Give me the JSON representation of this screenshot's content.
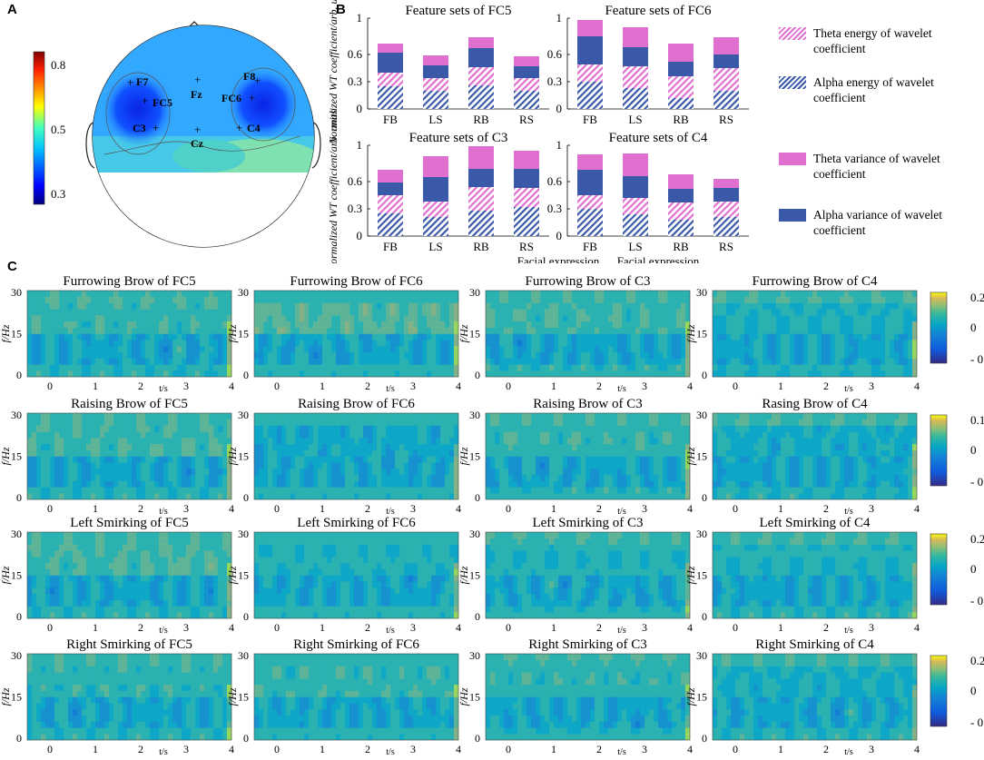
{
  "panels": {
    "a": "A",
    "b": "B",
    "c": "C"
  },
  "colors": {
    "theta": "#e070d0",
    "alpha": "#3a59a8"
  },
  "topomap": {
    "colorbar_ticks": [
      "0.8",
      "0.5",
      "0.3"
    ],
    "electrodes": [
      {
        "name": "F7"
      },
      {
        "name": "Fz"
      },
      {
        "name": "F8"
      },
      {
        "name": "FC5"
      },
      {
        "name": "FC6"
      },
      {
        "name": "C3"
      },
      {
        "name": "C4"
      },
      {
        "name": "Cz"
      }
    ]
  },
  "legend": {
    "theta_energy": "Theta energy  of wavelet coefficient",
    "alpha_energy": "Alpha energy  of wavelet coefficient",
    "theta_variance": "Theta variance  of wavelet coefficient",
    "alpha_variance": "Alpha variance  of wavelet coefficient"
  },
  "chart_data": [
    {
      "type": "bar",
      "title": "Feature sets of FC5",
      "ylabel": "Normalized WT coefficient/arb. units",
      "xlabel": "",
      "categories": [
        "FB",
        "LS",
        "RB",
        "RS"
      ],
      "ylim": [
        0,
        1
      ],
      "yticks": [
        "1",
        "0.6",
        "0.3",
        "0"
      ],
      "series": [
        {
          "name": "Alpha energy of wavelet coefficient",
          "values": [
            0.25,
            0.2,
            0.26,
            0.2
          ]
        },
        {
          "name": "Theta energy of wavelet coefficient",
          "values": [
            0.15,
            0.14,
            0.2,
            0.14
          ]
        },
        {
          "name": "Alpha variance of wavelet coefficient",
          "values": [
            0.22,
            0.14,
            0.21,
            0.13
          ]
        },
        {
          "name": "Theta variance of wavelet coefficient",
          "values": [
            0.1,
            0.11,
            0.12,
            0.11
          ]
        }
      ]
    },
    {
      "type": "bar",
      "title": "Feature sets of FC6",
      "ylabel": "",
      "xlabel": "",
      "categories": [
        "FB",
        "LS",
        "RB",
        "RS"
      ],
      "ylim": [
        0,
        1
      ],
      "yticks": [
        "1",
        "0.6",
        "0.3",
        "0"
      ],
      "series": [
        {
          "name": "Alpha energy of wavelet coefficient",
          "values": [
            0.3,
            0.23,
            0.12,
            0.2
          ]
        },
        {
          "name": "Theta energy of wavelet coefficient",
          "values": [
            0.19,
            0.24,
            0.24,
            0.25
          ]
        },
        {
          "name": "Alpha variance of wavelet coefficient",
          "values": [
            0.31,
            0.21,
            0.16,
            0.15
          ]
        },
        {
          "name": "Theta variance of wavelet coefficient",
          "values": [
            0.18,
            0.22,
            0.2,
            0.19
          ]
        }
      ]
    },
    {
      "type": "bar",
      "title": "Feature sets of C3",
      "ylabel": "Normalized WT coefficient/arb. units",
      "xlabel": "",
      "categories": [
        "FB",
        "LS",
        "RB",
        "RS"
      ],
      "ylim": [
        0,
        1
      ],
      "yticks": [
        "1",
        "0.6",
        "0.3",
        "0"
      ],
      "series": [
        {
          "name": "Alpha energy of wavelet coefficient",
          "values": [
            0.25,
            0.21,
            0.28,
            0.32
          ]
        },
        {
          "name": "Theta energy of wavelet coefficient",
          "values": [
            0.2,
            0.17,
            0.26,
            0.21
          ]
        },
        {
          "name": "Alpha variance of wavelet coefficient",
          "values": [
            0.14,
            0.27,
            0.2,
            0.21
          ]
        },
        {
          "name": "Theta variance of wavelet coefficient",
          "values": [
            0.14,
            0.23,
            0.25,
            0.2
          ]
        }
      ]
    },
    {
      "type": "bar",
      "title": "Feature sets of C4",
      "ylabel": "",
      "xlabel": "Facial expression",
      "categories": [
        "FB",
        "LS",
        "RB",
        "RS"
      ],
      "ylim": [
        0,
        1
      ],
      "yticks": [
        "1",
        "0.6",
        "0.3",
        "0"
      ],
      "series": [
        {
          "name": "Alpha energy of wavelet coefficient",
          "values": [
            0.3,
            0.24,
            0.18,
            0.21
          ]
        },
        {
          "name": "Theta energy of wavelet coefficient",
          "values": [
            0.15,
            0.18,
            0.19,
            0.17
          ]
        },
        {
          "name": "Alpha variance of wavelet coefficient",
          "values": [
            0.28,
            0.24,
            0.15,
            0.15
          ]
        },
        {
          "name": "Theta variance of wavelet coefficient",
          "values": [
            0.17,
            0.25,
            0.16,
            0.1
          ]
        }
      ]
    },
    {
      "type": "heatmap",
      "title": "Wavelet time-frequency maps",
      "xlabel": "t/s",
      "ylabel": "f/Hz",
      "xlim": [
        -0.5,
        4
      ],
      "ylim": [
        0,
        30
      ],
      "xticks": [
        "0",
        "1",
        "2",
        "3",
        "4"
      ],
      "yticks": [
        "30",
        "15",
        "0"
      ],
      "rows": [
        {
          "colorbar": [
            "0.2",
            "0",
            "- 0.2"
          ],
          "clim": [
            -0.2,
            0.2
          ],
          "titles": [
            "Furrowing Brow  of  FC5",
            "Furrowing Brow  of  FC6",
            "Furrowing Brow  of  C3",
            "Furrowing Brow  of  C4"
          ],
          "bias": [
            0.2,
            0.6,
            0.3,
            -0.2
          ]
        },
        {
          "colorbar": [
            "0.15",
            "0",
            "- 0.15"
          ],
          "clim": [
            -0.15,
            0.15
          ],
          "titles": [
            "Raising Brow  of FC5",
            "Raising Brow  of FC6",
            "Raising Brow  of C3",
            "Rasing Brow  of C4"
          ],
          "bias": [
            0.3,
            -0.5,
            0.2,
            -0.4
          ]
        },
        {
          "colorbar": [
            "0.2",
            "0",
            "- 0.2"
          ],
          "clim": [
            -0.2,
            0.2
          ],
          "titles": [
            "Left Smirking of FC5",
            "Left Smirking of FC6",
            "Left Smirking of C3",
            "Left Smirking of C4"
          ],
          "bias": [
            0.4,
            -0.1,
            -0.1,
            -0.1
          ]
        },
        {
          "colorbar": [
            "0.2",
            "0",
            "- 0.2"
          ],
          "clim": [
            -0.2,
            0.2
          ],
          "titles": [
            "Right Smirking of FC5",
            "Right Smirking of FC6",
            "Right Smirking of C3",
            "Right Smirking of C4"
          ],
          "bias": [
            0.1,
            0.2,
            0.1,
            -0.3
          ]
        }
      ]
    }
  ]
}
